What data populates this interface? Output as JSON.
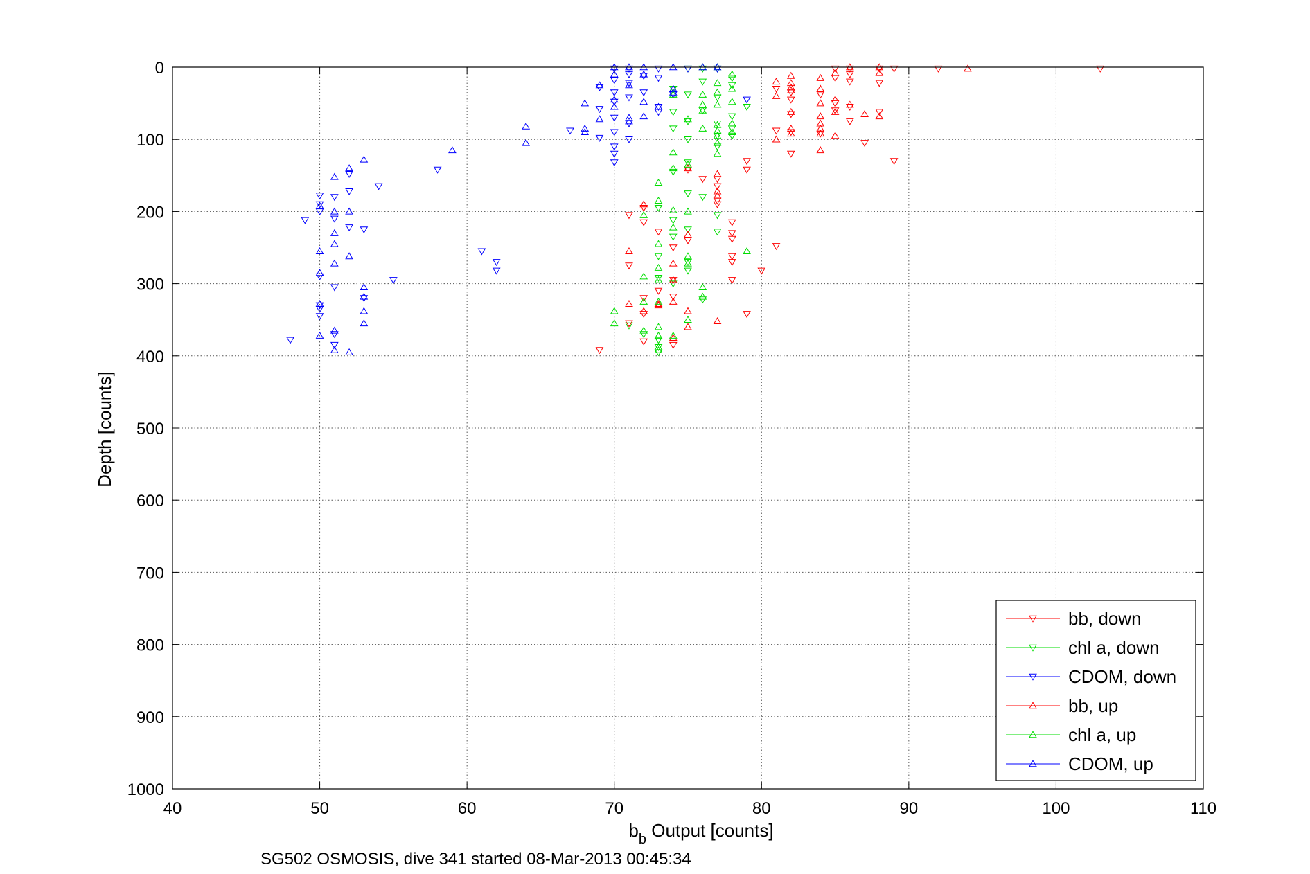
{
  "chart_data": {
    "type": "scatter",
    "xlabel_main": "b",
    "xlabel_sub": "b",
    "xlabel_rest": " Output [counts]",
    "ylabel": "Depth [counts]",
    "footer": "SG502 OSMOSIS, dive 341 started 08-Mar-2013 00:45:34",
    "xlim": [
      40,
      110
    ],
    "ylim": [
      0,
      1000
    ],
    "y_reversed": true,
    "grid": true,
    "xticks": [
      "40",
      "50",
      "60",
      "70",
      "80",
      "90",
      "100",
      "110"
    ],
    "yticks": [
      "0",
      "100",
      "200",
      "300",
      "400",
      "500",
      "600",
      "700",
      "800",
      "900",
      "1000"
    ],
    "legend_position": "bottom-right",
    "series": [
      {
        "name": "bb, down",
        "color": "#ff0000",
        "marker": "triangle-down",
        "points": [
          [
            85,
            2
          ],
          [
            86,
            2
          ],
          [
            88,
            2
          ],
          [
            89,
            2
          ],
          [
            92,
            2
          ],
          [
            103,
            2
          ],
          [
            86,
            10
          ],
          [
            85,
            15
          ],
          [
            86,
            20
          ],
          [
            88,
            22
          ],
          [
            81,
            30
          ],
          [
            82,
            35
          ],
          [
            84,
            38
          ],
          [
            82,
            45
          ],
          [
            85,
            50
          ],
          [
            86,
            55
          ],
          [
            85,
            60
          ],
          [
            88,
            62
          ],
          [
            82,
            65
          ],
          [
            86,
            75
          ],
          [
            81,
            88
          ],
          [
            82,
            90
          ],
          [
            84,
            92
          ],
          [
            87,
            105
          ],
          [
            82,
            120
          ],
          [
            89,
            130
          ],
          [
            79,
            130
          ],
          [
            79,
            142
          ],
          [
            75,
            142
          ],
          [
            77,
            155
          ],
          [
            76,
            155
          ],
          [
            77,
            165
          ],
          [
            77,
            185
          ],
          [
            77,
            190
          ],
          [
            72,
            195
          ],
          [
            71,
            205
          ],
          [
            72,
            215
          ],
          [
            78,
            215
          ],
          [
            73,
            228
          ],
          [
            78,
            230
          ],
          [
            78,
            238
          ],
          [
            75,
            240
          ],
          [
            81,
            248
          ],
          [
            74,
            250
          ],
          [
            78,
            262
          ],
          [
            71,
            275
          ],
          [
            78,
            270
          ],
          [
            80,
            282
          ],
          [
            78,
            295
          ],
          [
            74,
            295
          ],
          [
            73,
            310
          ],
          [
            74,
            318
          ],
          [
            72,
            320
          ],
          [
            79,
            342
          ],
          [
            72,
            342
          ],
          [
            71,
            355
          ],
          [
            72,
            380
          ],
          [
            74,
            385
          ],
          [
            69,
            392
          ]
        ]
      },
      {
        "name": "chl a, down",
        "color": "#00dd00",
        "marker": "triangle-down",
        "points": [
          [
            75,
            2
          ],
          [
            76,
            2
          ],
          [
            77,
            2
          ],
          [
            78,
            15
          ],
          [
            76,
            20
          ],
          [
            78,
            25
          ],
          [
            74,
            30
          ],
          [
            75,
            38
          ],
          [
            77,
            42
          ],
          [
            79,
            55
          ],
          [
            76,
            60
          ],
          [
            74,
            62
          ],
          [
            78,
            68
          ],
          [
            75,
            75
          ],
          [
            77,
            78
          ],
          [
            78,
            85
          ],
          [
            74,
            85
          ],
          [
            77,
            95
          ],
          [
            78,
            95
          ],
          [
            75,
            100
          ],
          [
            77,
            110
          ],
          [
            75,
            132
          ],
          [
            74,
            145
          ],
          [
            75,
            175
          ],
          [
            76,
            180
          ],
          [
            73,
            195
          ],
          [
            77,
            205
          ],
          [
            74,
            212
          ],
          [
            75,
            225
          ],
          [
            77,
            228
          ],
          [
            74,
            235
          ],
          [
            73,
            262
          ],
          [
            75,
            270
          ],
          [
            75,
            282
          ],
          [
            73,
            292
          ],
          [
            74,
            300
          ],
          [
            76,
            322
          ],
          [
            71,
            358
          ],
          [
            72,
            370
          ],
          [
            73,
            378
          ],
          [
            73,
            388
          ],
          [
            73,
            395
          ]
        ]
      },
      {
        "name": "CDOM, down",
        "color": "#0000ff",
        "marker": "triangle-down",
        "points": [
          [
            70,
            2
          ],
          [
            71,
            2
          ],
          [
            73,
            2
          ],
          [
            75,
            2
          ],
          [
            77,
            2
          ],
          [
            71,
            10
          ],
          [
            72,
            12
          ],
          [
            73,
            15
          ],
          [
            70,
            18
          ],
          [
            71,
            22
          ],
          [
            69,
            28
          ],
          [
            70,
            35
          ],
          [
            72,
            35
          ],
          [
            71,
            42
          ],
          [
            74,
            38
          ],
          [
            70,
            48
          ],
          [
            73,
            55
          ],
          [
            69,
            58
          ],
          [
            73,
            62
          ],
          [
            79,
            45
          ],
          [
            70,
            70
          ],
          [
            71,
            78
          ],
          [
            70,
            90
          ],
          [
            69,
            98
          ],
          [
            71,
            100
          ],
          [
            70,
            110
          ],
          [
            70,
            120
          ],
          [
            70,
            132
          ],
          [
            67,
            88
          ],
          [
            58,
            142
          ],
          [
            54,
            165
          ],
          [
            52,
            148
          ],
          [
            52,
            172
          ],
          [
            51,
            180
          ],
          [
            50,
            178
          ],
          [
            50,
            190
          ],
          [
            50,
            200
          ],
          [
            51,
            210
          ],
          [
            53,
            225
          ],
          [
            52,
            222
          ],
          [
            49,
            212
          ],
          [
            61,
            255
          ],
          [
            62,
            270
          ],
          [
            62,
            282
          ],
          [
            55,
            295
          ],
          [
            53,
            320
          ],
          [
            51,
            305
          ],
          [
            50,
            290
          ],
          [
            50,
            330
          ],
          [
            50,
            335
          ],
          [
            50,
            345
          ],
          [
            51,
            370
          ],
          [
            51,
            385
          ],
          [
            48,
            378
          ]
        ]
      },
      {
        "name": "bb, up",
        "color": "#ff0000",
        "marker": "triangle-up",
        "points": [
          [
            86,
            0
          ],
          [
            88,
            0
          ],
          [
            94,
            2
          ],
          [
            85,
            8
          ],
          [
            88,
            8
          ],
          [
            82,
            12
          ],
          [
            84,
            15
          ],
          [
            81,
            20
          ],
          [
            82,
            22
          ],
          [
            82,
            28
          ],
          [
            84,
            30
          ],
          [
            82,
            32
          ],
          [
            81,
            40
          ],
          [
            85,
            45
          ],
          [
            84,
            50
          ],
          [
            86,
            52
          ],
          [
            85,
            62
          ],
          [
            82,
            62
          ],
          [
            87,
            65
          ],
          [
            88,
            68
          ],
          [
            84,
            68
          ],
          [
            84,
            78
          ],
          [
            84,
            85
          ],
          [
            82,
            85
          ],
          [
            82,
            92
          ],
          [
            84,
            92
          ],
          [
            81,
            100
          ],
          [
            85,
            95
          ],
          [
            84,
            115
          ],
          [
            77,
            148
          ],
          [
            75,
            140
          ],
          [
            77,
            172
          ],
          [
            77,
            178
          ],
          [
            72,
            190
          ],
          [
            75,
            232
          ],
          [
            71,
            255
          ],
          [
            74,
            272
          ],
          [
            74,
            295
          ],
          [
            73,
            328
          ],
          [
            71,
            328
          ],
          [
            74,
            325
          ],
          [
            75,
            338
          ],
          [
            72,
            338
          ],
          [
            77,
            352
          ],
          [
            75,
            360
          ],
          [
            74,
            375
          ],
          [
            73,
            330
          ]
        ]
      },
      {
        "name": "chl a, up",
        "color": "#00dd00",
        "marker": "triangle-up",
        "points": [
          [
            76,
            0
          ],
          [
            77,
            0
          ],
          [
            78,
            10
          ],
          [
            77,
            22
          ],
          [
            78,
            30
          ],
          [
            76,
            38
          ],
          [
            77,
            35
          ],
          [
            74,
            38
          ],
          [
            78,
            48
          ],
          [
            76,
            52
          ],
          [
            77,
            52
          ],
          [
            76,
            60
          ],
          [
            78,
            78
          ],
          [
            77,
            80
          ],
          [
            76,
            85
          ],
          [
            75,
            72
          ],
          [
            77,
            88
          ],
          [
            77,
            95
          ],
          [
            77,
            105
          ],
          [
            78,
            90
          ],
          [
            77,
            120
          ],
          [
            74,
            118
          ],
          [
            75,
            135
          ],
          [
            74,
            140
          ],
          [
            73,
            160
          ],
          [
            73,
            185
          ],
          [
            74,
            198
          ],
          [
            75,
            200
          ],
          [
            72,
            205
          ],
          [
            74,
            222
          ],
          [
            73,
            245
          ],
          [
            75,
            262
          ],
          [
            79,
            255
          ],
          [
            75,
            272
          ],
          [
            73,
            278
          ],
          [
            72,
            290
          ],
          [
            73,
            295
          ],
          [
            76,
            305
          ],
          [
            76,
            318
          ],
          [
            72,
            325
          ],
          [
            73,
            325
          ],
          [
            70,
            338
          ],
          [
            75,
            350
          ],
          [
            70,
            355
          ],
          [
            73,
            360
          ],
          [
            72,
            365
          ],
          [
            73,
            372
          ],
          [
            74,
            372
          ],
          [
            73,
            388
          ],
          [
            73,
            392
          ]
        ]
      },
      {
        "name": "CDOM, up",
        "color": "#0000ff",
        "marker": "triangle-up",
        "points": [
          [
            70,
            0
          ],
          [
            71,
            0
          ],
          [
            72,
            0
          ],
          [
            74,
            0
          ],
          [
            76,
            0
          ],
          [
            77,
            0
          ],
          [
            70,
            10
          ],
          [
            72,
            10
          ],
          [
            71,
            25
          ],
          [
            69,
            25
          ],
          [
            74,
            30
          ],
          [
            70,
            45
          ],
          [
            72,
            48
          ],
          [
            73,
            55
          ],
          [
            74,
            35
          ],
          [
            70,
            55
          ],
          [
            68,
            50
          ],
          [
            71,
            70
          ],
          [
            72,
            68
          ],
          [
            69,
            72
          ],
          [
            68,
            85
          ],
          [
            68,
            90
          ],
          [
            71,
            75
          ],
          [
            64,
            82
          ],
          [
            64,
            105
          ],
          [
            59,
            115
          ],
          [
            53,
            128
          ],
          [
            52,
            140
          ],
          [
            51,
            152
          ],
          [
            51,
            200
          ],
          [
            52,
            200
          ],
          [
            50,
            192
          ],
          [
            51,
            230
          ],
          [
            51,
            245
          ],
          [
            50,
            255
          ],
          [
            52,
            262
          ],
          [
            51,
            272
          ],
          [
            50,
            285
          ],
          [
            53,
            305
          ],
          [
            53,
            318
          ],
          [
            53,
            338
          ],
          [
            53,
            355
          ],
          [
            51,
            365
          ],
          [
            51,
            392
          ],
          [
            52,
            395
          ],
          [
            50,
            372
          ],
          [
            50,
            328
          ]
        ]
      }
    ]
  }
}
